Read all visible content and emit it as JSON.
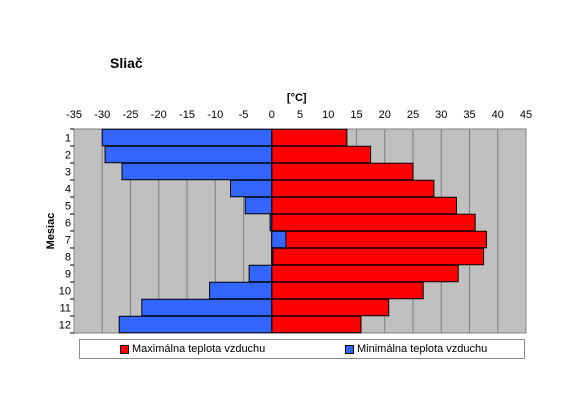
{
  "title": "Sliač",
  "colors": {
    "max": "#ff0000",
    "min": "#3366ff",
    "plot_bg": "#c0c0c0",
    "grid": "#808080"
  },
  "legend": {
    "max_label": "Maximálna teplota vzduchu",
    "min_label": "Minimálna teplota vzduchu"
  },
  "chart_data": {
    "type": "bar",
    "orientation": "horizontal",
    "title": "Sliač",
    "xlabel": "[°C]",
    "ylabel": "Mesiac",
    "xlim": [
      -35,
      45
    ],
    "xticks": [
      -35,
      -30,
      -25,
      -20,
      -15,
      -10,
      -5,
      0,
      5,
      10,
      15,
      20,
      25,
      30,
      35,
      40,
      45
    ],
    "categories": [
      "1",
      "2",
      "3",
      "4",
      "5",
      "6",
      "7",
      "8",
      "9",
      "10",
      "11",
      "12"
    ],
    "series": [
      {
        "name": "Maximálna teplota vzduchu",
        "values": [
          13.3,
          17.5,
          25.0,
          28.7,
          32.7,
          36.0,
          38.0,
          37.5,
          33.0,
          26.8,
          20.7,
          15.8
        ]
      },
      {
        "name": "Minimálna teplota vzduchu",
        "values": [
          -30.0,
          -29.5,
          -26.5,
          -7.3,
          -4.7,
          -0.3,
          2.5,
          0.2,
          -4.0,
          -11.0,
          -23.0,
          -27.0
        ]
      }
    ],
    "grid": true,
    "legend_position": "bottom"
  }
}
